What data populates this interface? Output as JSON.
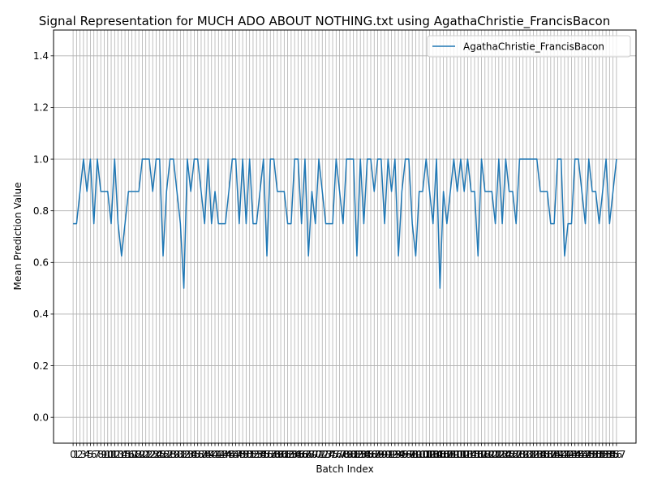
{
  "chart_data": {
    "type": "line",
    "title": "Signal Representation for MUCH ADO ABOUT NOTHING.txt using AgathaChristie_FrancisBacon",
    "xlabel": "Batch Index",
    "ylabel": "Mean Prediction Value",
    "xlim": [
      -5.65,
      162.65
    ],
    "ylim": [
      -0.1,
      1.5
    ],
    "yticks": [
      0.0,
      0.2,
      0.4,
      0.6,
      0.8,
      1.0,
      1.2,
      1.4
    ],
    "grid": true,
    "legend_position": "top-right",
    "colors": {
      "series": "#1f77b4",
      "grid": "#b0b0b0"
    },
    "series": [
      {
        "name": "AgathaChristie_FrancisBacon",
        "values": [
          0.75,
          0.75,
          0.875,
          1.0,
          0.875,
          1.0,
          0.75,
          1.0,
          0.875,
          0.875,
          0.875,
          0.75,
          1.0,
          0.75,
          0.625,
          0.75,
          0.875,
          0.875,
          0.875,
          0.875,
          1.0,
          1.0,
          1.0,
          0.875,
          1.0,
          1.0,
          0.625,
          0.875,
          1.0,
          1.0,
          0.875,
          0.75,
          0.5,
          1.0,
          0.875,
          1.0,
          1.0,
          0.875,
          0.75,
          1.0,
          0.75,
          0.875,
          0.75,
          0.75,
          0.75,
          0.875,
          1.0,
          1.0,
          0.75,
          1.0,
          0.75,
          1.0,
          0.75,
          0.75,
          0.875,
          1.0,
          0.625,
          1.0,
          1.0,
          0.875,
          0.875,
          0.875,
          0.75,
          0.75,
          1.0,
          1.0,
          0.75,
          1.0,
          0.625,
          0.875,
          0.75,
          1.0,
          0.875,
          0.75,
          0.75,
          0.75,
          1.0,
          0.875,
          0.75,
          1.0,
          1.0,
          1.0,
          0.625,
          1.0,
          0.75,
          1.0,
          1.0,
          0.875,
          1.0,
          1.0,
          0.75,
          1.0,
          0.875,
          1.0,
          0.625,
          0.875,
          1.0,
          1.0,
          0.75,
          0.625,
          0.875,
          0.875,
          1.0,
          0.875,
          0.75,
          1.0,
          0.5,
          0.875,
          0.75,
          0.875,
          1.0,
          0.875,
          1.0,
          0.875,
          1.0,
          0.875,
          0.875,
          0.625,
          1.0,
          0.875,
          0.875,
          0.875,
          0.75,
          1.0,
          0.75,
          1.0,
          0.875,
          0.875,
          0.75,
          1.0,
          1.0,
          1.0,
          1.0,
          1.0,
          1.0,
          0.875,
          0.875,
          0.875,
          0.75,
          0.75,
          1.0,
          1.0,
          0.625,
          0.75,
          0.75,
          1.0,
          1.0,
          0.875,
          0.75,
          1.0,
          0.875,
          0.875,
          0.75,
          0.875,
          1.0,
          0.75,
          0.875,
          1.0
        ]
      }
    ],
    "x_tick_labels": [
      "0",
      "1",
      "2",
      "3",
      "4",
      "5",
      "6",
      "7",
      "8",
      "9",
      "10",
      "11",
      "12",
      "13",
      "14",
      "15",
      "16",
      "17",
      "18",
      "19",
      "20",
      "21",
      "22",
      "23",
      "24",
      "25",
      "26",
      "27",
      "28",
      "29",
      "30",
      "31",
      "32",
      "33",
      "34",
      "35",
      "36",
      "37",
      "38",
      "39",
      "40",
      "41",
      "42",
      "43",
      "44",
      "45",
      "46",
      "47",
      "48",
      "49",
      "50",
      "51",
      "52",
      "53",
      "54",
      "55",
      "56",
      "57",
      "58",
      "59",
      "60",
      "61",
      "62",
      "63",
      "64",
      "65",
      "66",
      "67",
      "68",
      "69",
      "70",
      "71",
      "72",
      "73",
      "74",
      "75",
      "76",
      "77",
      "78",
      "79",
      "80",
      "81",
      "82",
      "83",
      "84",
      "85",
      "86",
      "87",
      "88",
      "89",
      "90",
      "91",
      "92",
      "93",
      "94",
      "95",
      "96",
      "97",
      "98",
      "99",
      "100",
      "101",
      "102",
      "103",
      "104",
      "105",
      "106",
      "107",
      "108",
      "109",
      "110",
      "111",
      "112",
      "113",
      "114",
      "115",
      "116",
      "117",
      "118",
      "119",
      "120",
      "121",
      "122",
      "123",
      "124",
      "125",
      "126",
      "127",
      "128",
      "129",
      "130",
      "131",
      "132",
      "133",
      "134",
      "135",
      "136",
      "137",
      "138",
      "139",
      "140",
      "141",
      "142",
      "143",
      "144",
      "145",
      "146",
      "147",
      "148",
      "149",
      "150",
      "151",
      "152",
      "153",
      "154",
      "155",
      "156",
      "157"
    ]
  }
}
